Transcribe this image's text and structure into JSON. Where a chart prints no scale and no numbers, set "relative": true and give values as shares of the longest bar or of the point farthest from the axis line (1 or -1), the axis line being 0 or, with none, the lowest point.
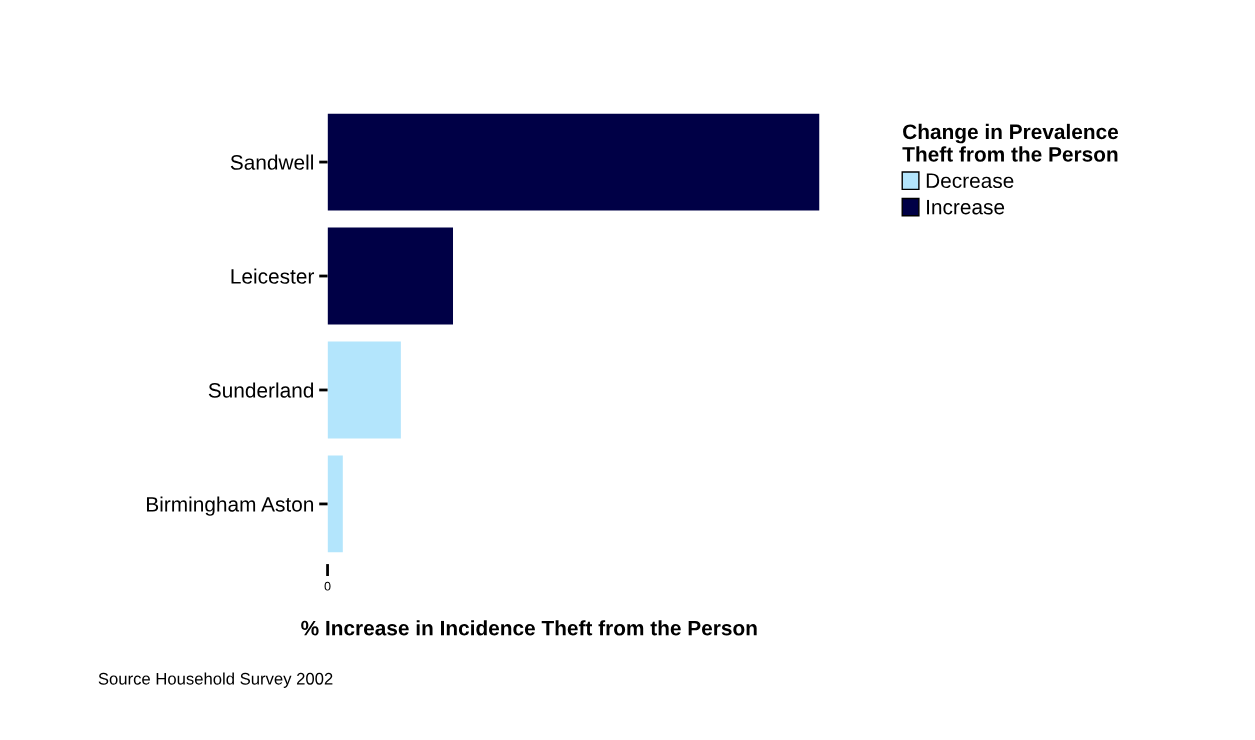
{
  "chart_data": {
    "type": "bar",
    "orientation": "horizontal",
    "relative": true,
    "categories": [
      "Sandwell",
      "Leicester",
      "Sunderland",
      "Birmingham Aston"
    ],
    "series": [
      {
        "name": "Decrease",
        "color": "#b3e5fc",
        "values": [
          null,
          null,
          0.149,
          0.031
        ]
      },
      {
        "name": "Increase",
        "color": "#000046",
        "values": [
          1,
          0.255,
          null,
          null
        ]
      }
    ],
    "xlabel": "% Increase in Incidence Theft from the Person",
    "legend_title": "Change in Prevalence\nTheft from the Person",
    "legend": "top right",
    "grid": false,
    "annotations": [
      "0",
      "Source Household Survey 2002"
    ]
  }
}
